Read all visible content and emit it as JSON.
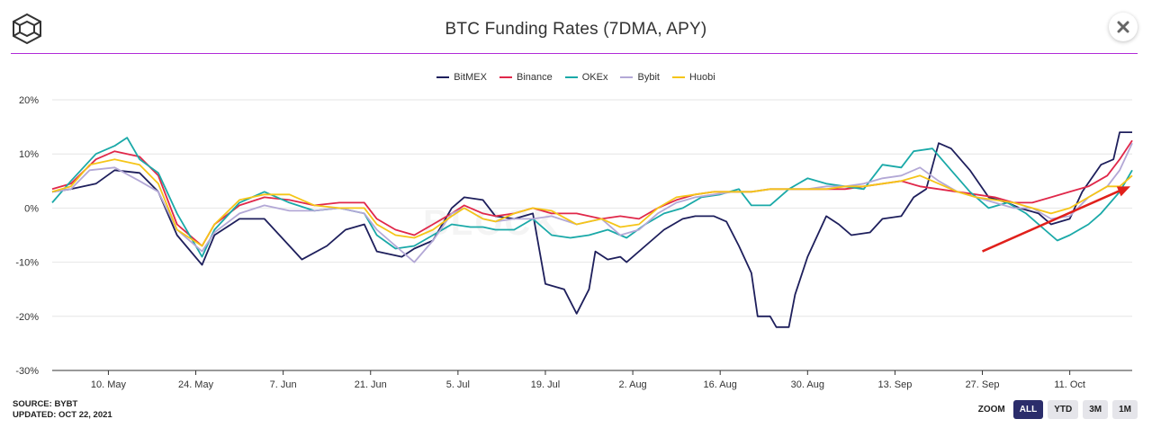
{
  "header": {
    "title": "BTC Funding Rates (7DMA, APY)"
  },
  "footer": {
    "source": "SOURCE: BYBT",
    "updated": "UPDATED: OCT 22, 2021"
  },
  "zoom": {
    "label": "ZOOM",
    "options": [
      "ALL",
      "YTD",
      "3M",
      "1M"
    ],
    "active": "ALL"
  },
  "watermark": "BLOCK",
  "chart_data": {
    "type": "line",
    "title": "BTC Funding Rates (7DMA, APY)",
    "y_unit": "%",
    "ylim": [
      -30,
      20
    ],
    "y_ticks": [
      20,
      10,
      0,
      -10,
      -20,
      -30
    ],
    "y_tick_labels": [
      "20%",
      "10%",
      "0%",
      "-10%",
      "-20%",
      "-30%"
    ],
    "xlim": [
      0,
      173
    ],
    "x_unit": "days since 2021-05-01",
    "x_ticks": [
      9,
      23,
      37,
      51,
      65,
      79,
      93,
      107,
      121,
      135,
      149,
      163
    ],
    "x_tick_labels": [
      "10. May",
      "24. May",
      "7. Jun",
      "21. Jun",
      "5. Jul",
      "19. Jul",
      "2. Aug",
      "16. Aug",
      "30. Aug",
      "13. Sep",
      "27. Sep",
      "11. Oct"
    ],
    "grid": "horizontal",
    "legend_position": "top-center",
    "annotation": {
      "type": "arrow",
      "color": "#e0201b",
      "from": [
        149,
        -8
      ],
      "to": [
        173,
        4
      ]
    },
    "series": [
      {
        "name": "BitMEX",
        "color": "#1e1f5c",
        "points": [
          [
            0,
            3
          ],
          [
            3,
            3.5
          ],
          [
            7,
            4.5
          ],
          [
            10,
            7
          ],
          [
            14,
            6.5
          ],
          [
            17,
            3
          ],
          [
            20,
            -5
          ],
          [
            24,
            -10.5
          ],
          [
            26,
            -5
          ],
          [
            30,
            -2
          ],
          [
            34,
            -2
          ],
          [
            38,
            -7
          ],
          [
            40,
            -9.5
          ],
          [
            44,
            -7
          ],
          [
            47,
            -4
          ],
          [
            50,
            -3
          ],
          [
            52,
            -8
          ],
          [
            56,
            -9
          ],
          [
            58,
            -7.5
          ],
          [
            61,
            -6
          ],
          [
            64,
            0
          ],
          [
            66,
            2
          ],
          [
            69,
            1.5
          ],
          [
            71,
            -1.5
          ],
          [
            74,
            -2
          ],
          [
            77,
            -1
          ],
          [
            79,
            -14
          ],
          [
            82,
            -15
          ],
          [
            84,
            -19.5
          ],
          [
            86,
            -15
          ],
          [
            87,
            -8
          ],
          [
            89,
            -9.5
          ],
          [
            91,
            -9
          ],
          [
            92,
            -10
          ],
          [
            95,
            -7
          ],
          [
            98,
            -4
          ],
          [
            101,
            -2
          ],
          [
            103,
            -1.5
          ],
          [
            106,
            -1.5
          ],
          [
            108,
            -2.5
          ],
          [
            110,
            -7
          ],
          [
            112,
            -12
          ],
          [
            113,
            -20
          ],
          [
            115,
            -20
          ],
          [
            116,
            -22
          ],
          [
            118,
            -22
          ],
          [
            119,
            -16
          ],
          [
            121,
            -9
          ],
          [
            124,
            -1.5
          ],
          [
            126,
            -3
          ],
          [
            128,
            -5
          ],
          [
            131,
            -4.5
          ],
          [
            133,
            -2
          ],
          [
            136,
            -1.5
          ],
          [
            138,
            2
          ],
          [
            140,
            3.5
          ],
          [
            142,
            12
          ],
          [
            144,
            11
          ],
          [
            147,
            7
          ],
          [
            150,
            2
          ],
          [
            153,
            1
          ],
          [
            155,
            0
          ],
          [
            158,
            -1
          ],
          [
            160,
            -3
          ],
          [
            163,
            -2
          ],
          [
            165,
            3
          ],
          [
            168,
            8
          ],
          [
            170,
            9
          ],
          [
            171,
            14
          ],
          [
            173,
            14
          ]
        ]
      },
      {
        "name": "Binance",
        "color": "#e0284a",
        "points": [
          [
            0,
            3.5
          ],
          [
            3,
            4.5
          ],
          [
            7,
            9
          ],
          [
            10,
            10.5
          ],
          [
            14,
            9.5
          ],
          [
            17,
            6
          ],
          [
            20,
            -3
          ],
          [
            24,
            -7
          ],
          [
            26,
            -3
          ],
          [
            30,
            0.5
          ],
          [
            34,
            2
          ],
          [
            38,
            1.5
          ],
          [
            42,
            0.5
          ],
          [
            46,
            1
          ],
          [
            50,
            1
          ],
          [
            52,
            -2
          ],
          [
            55,
            -4
          ],
          [
            58,
            -5
          ],
          [
            61,
            -3
          ],
          [
            64,
            -1
          ],
          [
            66,
            0.5
          ],
          [
            69,
            -1
          ],
          [
            71,
            -1.5
          ],
          [
            74,
            -1
          ],
          [
            77,
            0
          ],
          [
            80,
            -1
          ],
          [
            84,
            -1
          ],
          [
            88,
            -2
          ],
          [
            91,
            -1.5
          ],
          [
            94,
            -2
          ],
          [
            97,
            0
          ],
          [
            100,
            1.5
          ],
          [
            103,
            2.5
          ],
          [
            106,
            3
          ],
          [
            109,
            3
          ],
          [
            112,
            3
          ],
          [
            115,
            3.5
          ],
          [
            118,
            3.5
          ],
          [
            121,
            3.5
          ],
          [
            124,
            3.5
          ],
          [
            127,
            3.5
          ],
          [
            130,
            4
          ],
          [
            133,
            4.5
          ],
          [
            136,
            5
          ],
          [
            139,
            4
          ],
          [
            142,
            3.5
          ],
          [
            145,
            3
          ],
          [
            148,
            2.5
          ],
          [
            151,
            2
          ],
          [
            154,
            1
          ],
          [
            157,
            1
          ],
          [
            160,
            2
          ],
          [
            163,
            3
          ],
          [
            166,
            4
          ],
          [
            169,
            6
          ],
          [
            171,
            9
          ],
          [
            173,
            12.5
          ]
        ]
      },
      {
        "name": "OKEx",
        "color": "#1aa9a8",
        "points": [
          [
            0,
            1
          ],
          [
            3,
            5
          ],
          [
            7,
            10
          ],
          [
            10,
            11.5
          ],
          [
            12,
            13
          ],
          [
            14,
            9
          ],
          [
            17,
            6.5
          ],
          [
            20,
            -1
          ],
          [
            24,
            -9
          ],
          [
            26,
            -4
          ],
          [
            30,
            1
          ],
          [
            34,
            3
          ],
          [
            38,
            1
          ],
          [
            42,
            -0.5
          ],
          [
            46,
            0
          ],
          [
            50,
            -1
          ],
          [
            52,
            -5
          ],
          [
            55,
            -7.5
          ],
          [
            58,
            -7
          ],
          [
            61,
            -5
          ],
          [
            64,
            -3
          ],
          [
            67,
            -3.5
          ],
          [
            69,
            -3.5
          ],
          [
            71,
            -4
          ],
          [
            74,
            -4
          ],
          [
            77,
            -2
          ],
          [
            80,
            -5
          ],
          [
            83,
            -5.5
          ],
          [
            86,
            -5
          ],
          [
            89,
            -4
          ],
          [
            92,
            -5.5
          ],
          [
            95,
            -3
          ],
          [
            98,
            -1
          ],
          [
            101,
            0
          ],
          [
            104,
            2
          ],
          [
            107,
            2.5
          ],
          [
            110,
            3.5
          ],
          [
            112,
            0.5
          ],
          [
            115,
            0.5
          ],
          [
            118,
            3.5
          ],
          [
            121,
            5.5
          ],
          [
            124,
            4.5
          ],
          [
            127,
            4
          ],
          [
            130,
            3.5
          ],
          [
            133,
            8
          ],
          [
            136,
            7.5
          ],
          [
            138,
            10.5
          ],
          [
            141,
            11
          ],
          [
            144,
            7
          ],
          [
            147,
            3
          ],
          [
            150,
            0
          ],
          [
            153,
            1
          ],
          [
            156,
            -1
          ],
          [
            159,
            -4
          ],
          [
            161,
            -6
          ],
          [
            163,
            -5
          ],
          [
            166,
            -3
          ],
          [
            168,
            -1
          ],
          [
            171,
            3
          ],
          [
            173,
            7
          ]
        ]
      },
      {
        "name": "Bybit",
        "color": "#b3a8d6",
        "points": [
          [
            0,
            3
          ],
          [
            3,
            3.5
          ],
          [
            6,
            7
          ],
          [
            10,
            7.5
          ],
          [
            14,
            5
          ],
          [
            17,
            3
          ],
          [
            20,
            -4
          ],
          [
            24,
            -8
          ],
          [
            26,
            -4.5
          ],
          [
            30,
            -1
          ],
          [
            34,
            0.5
          ],
          [
            38,
            -0.5
          ],
          [
            42,
            -0.5
          ],
          [
            46,
            0
          ],
          [
            50,
            -1
          ],
          [
            52,
            -4
          ],
          [
            55,
            -7
          ],
          [
            58,
            -10
          ],
          [
            61,
            -6
          ],
          [
            64,
            -1
          ],
          [
            66,
            0
          ],
          [
            69,
            -2
          ],
          [
            71,
            -2.5
          ],
          [
            74,
            -2
          ],
          [
            77,
            -2
          ],
          [
            80,
            -1.5
          ],
          [
            84,
            -3
          ],
          [
            88,
            -2
          ],
          [
            91,
            -5
          ],
          [
            94,
            -4
          ],
          [
            97,
            -1
          ],
          [
            100,
            1
          ],
          [
            103,
            2
          ],
          [
            106,
            2.5
          ],
          [
            109,
            3
          ],
          [
            112,
            3
          ],
          [
            115,
            3.5
          ],
          [
            118,
            3.5
          ],
          [
            121,
            3.5
          ],
          [
            124,
            4
          ],
          [
            127,
            4
          ],
          [
            130,
            4.5
          ],
          [
            133,
            5.5
          ],
          [
            136,
            6
          ],
          [
            139,
            7.5
          ],
          [
            142,
            5
          ],
          [
            145,
            3
          ],
          [
            148,
            2
          ],
          [
            151,
            1
          ],
          [
            154,
            0
          ],
          [
            157,
            0
          ],
          [
            160,
            -2
          ],
          [
            163,
            -1.5
          ],
          [
            166,
            2
          ],
          [
            169,
            4
          ],
          [
            171,
            7
          ],
          [
            173,
            12
          ]
        ]
      },
      {
        "name": "Huobi",
        "color": "#f5c518",
        "points": [
          [
            0,
            3
          ],
          [
            3,
            4
          ],
          [
            6,
            8
          ],
          [
            10,
            9
          ],
          [
            14,
            8
          ],
          [
            17,
            4.5
          ],
          [
            20,
            -4
          ],
          [
            24,
            -7
          ],
          [
            26,
            -3
          ],
          [
            30,
            1.5
          ],
          [
            34,
            2.5
          ],
          [
            38,
            2.5
          ],
          [
            42,
            0.5
          ],
          [
            46,
            0
          ],
          [
            50,
            0
          ],
          [
            52,
            -3
          ],
          [
            55,
            -5
          ],
          [
            58,
            -5.5
          ],
          [
            61,
            -4
          ],
          [
            64,
            -1.5
          ],
          [
            66,
            0
          ],
          [
            69,
            -2
          ],
          [
            71,
            -2.5
          ],
          [
            74,
            -1
          ],
          [
            77,
            0
          ],
          [
            80,
            -0.5
          ],
          [
            84,
            -3
          ],
          [
            88,
            -2
          ],
          [
            91,
            -3.5
          ],
          [
            94,
            -3
          ],
          [
            97,
            0
          ],
          [
            100,
            2
          ],
          [
            103,
            2.5
          ],
          [
            106,
            3
          ],
          [
            109,
            3
          ],
          [
            112,
            3
          ],
          [
            115,
            3.5
          ],
          [
            118,
            3.5
          ],
          [
            121,
            3.5
          ],
          [
            124,
            3.5
          ],
          [
            127,
            4
          ],
          [
            130,
            4
          ],
          [
            133,
            4.5
          ],
          [
            136,
            5
          ],
          [
            139,
            6
          ],
          [
            142,
            4.5
          ],
          [
            145,
            3
          ],
          [
            148,
            2
          ],
          [
            151,
            1.5
          ],
          [
            154,
            1
          ],
          [
            157,
            0
          ],
          [
            160,
            -1
          ],
          [
            163,
            0
          ],
          [
            166,
            2
          ],
          [
            169,
            4
          ],
          [
            171,
            4
          ],
          [
            173,
            6
          ]
        ]
      }
    ]
  }
}
